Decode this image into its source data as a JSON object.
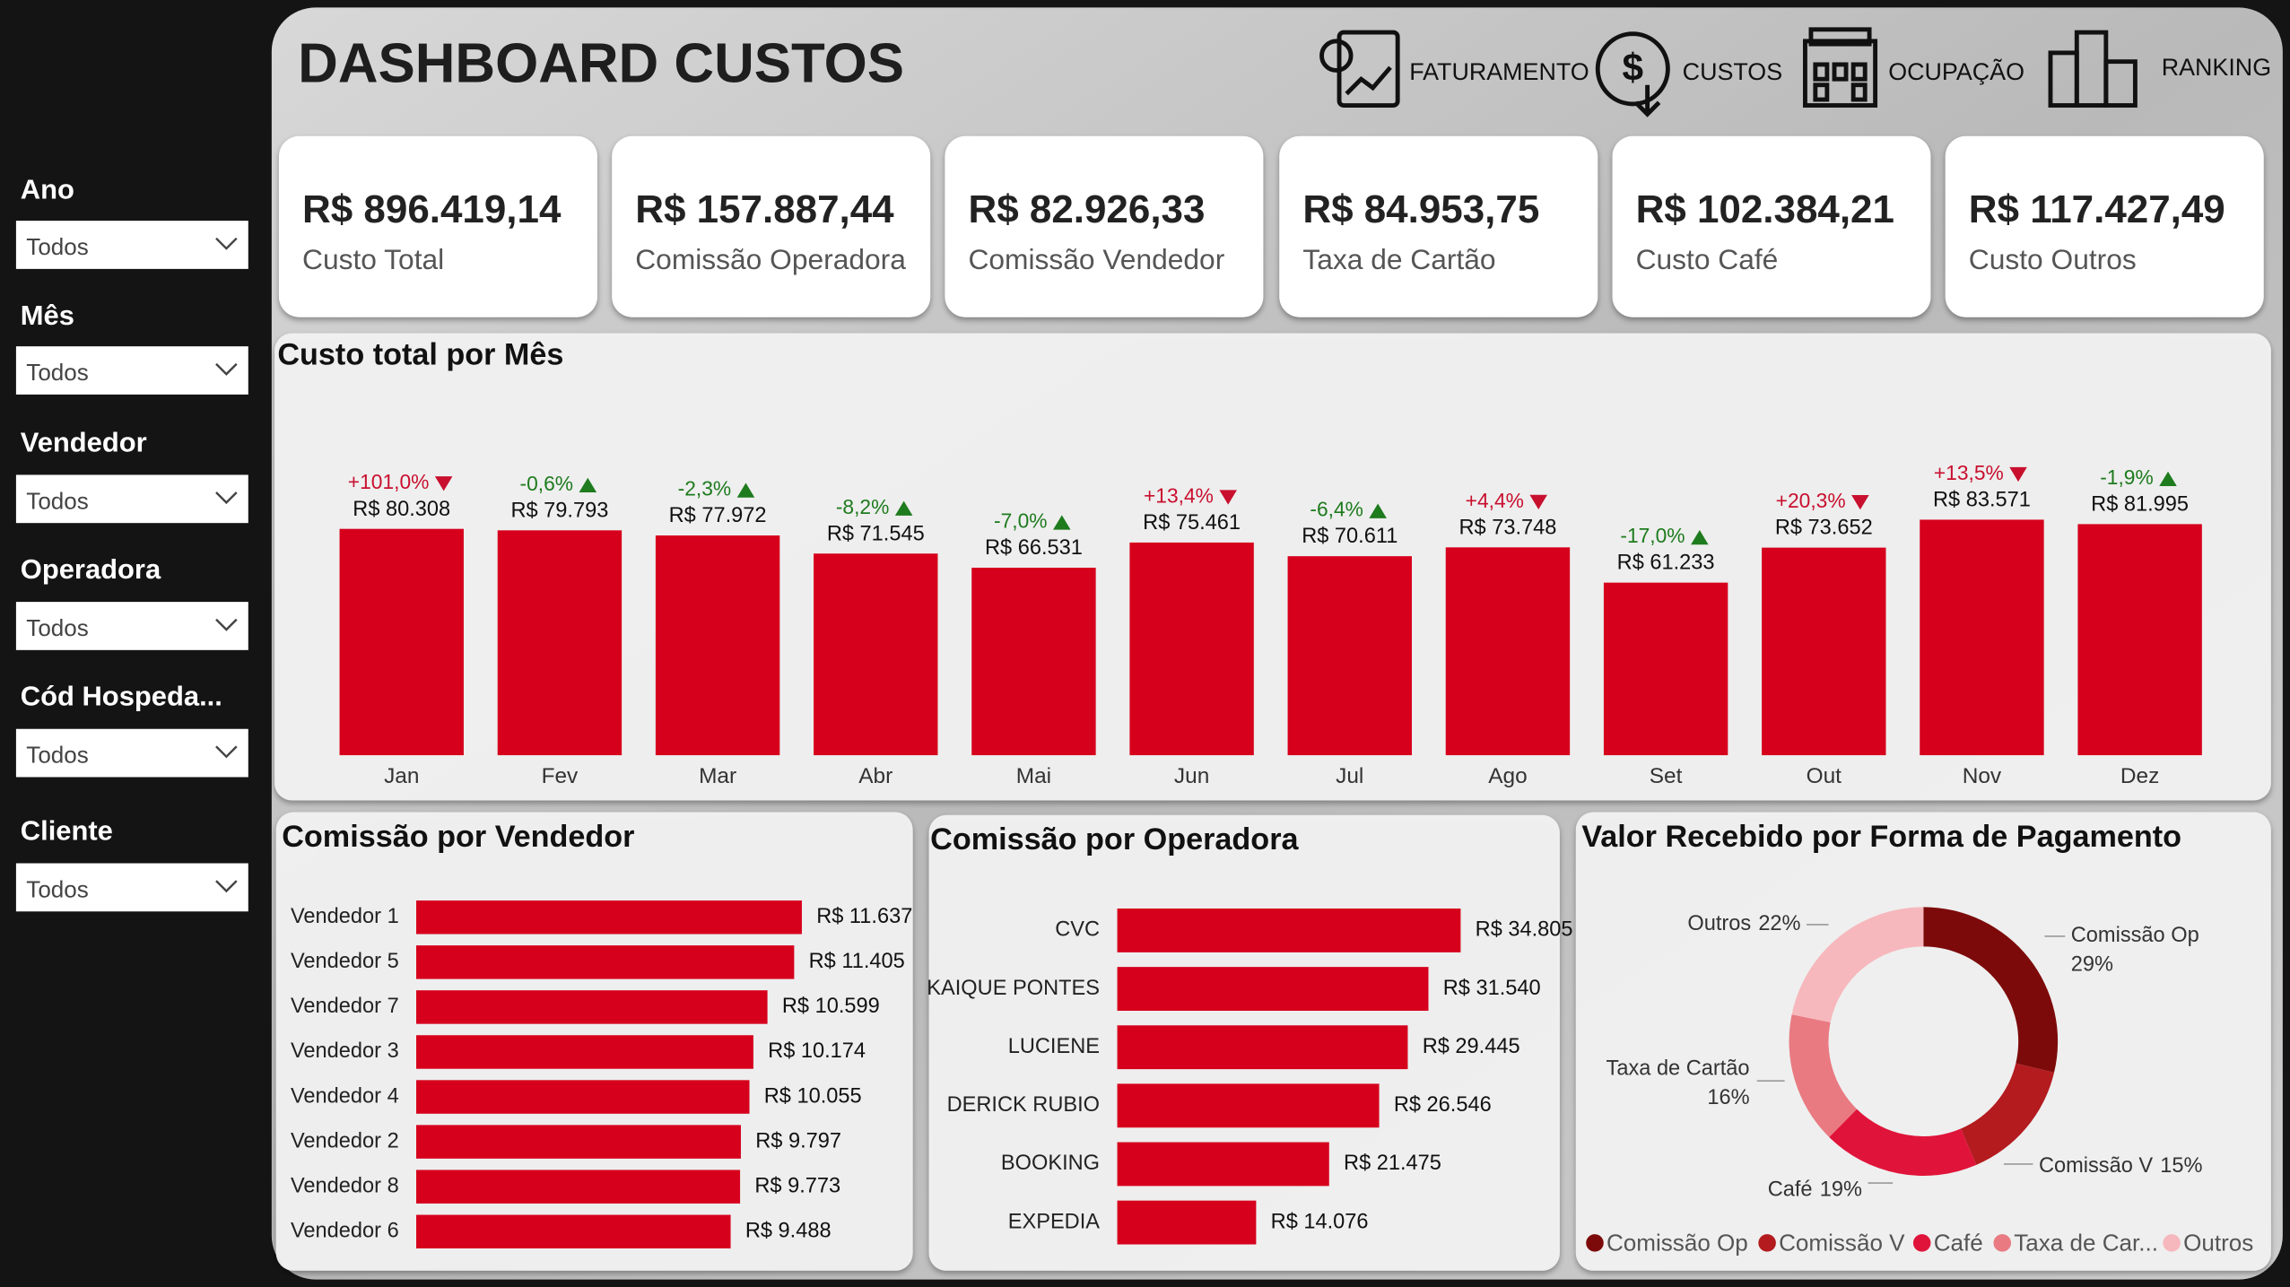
{
  "header": {
    "title": "DASHBOARD CUSTOS",
    "nav": [
      "FATURAMENTO",
      "CUSTOS",
      "OCUPAÇÃO",
      "RANKING"
    ]
  },
  "sidebar": {
    "filters": [
      {
        "label": "Ano",
        "value": "Todos"
      },
      {
        "label": "Mês",
        "value": "Todos"
      },
      {
        "label": "Vendedor",
        "value": "Todos"
      },
      {
        "label": "Operadora",
        "value": "Todos"
      },
      {
        "label": "Cód Hospeda...",
        "value": "Todos"
      },
      {
        "label": "Cliente",
        "value": "Todos"
      }
    ]
  },
  "kpis": [
    {
      "value": "R$ 896.419,14",
      "label": "Custo Total"
    },
    {
      "value": "R$ 157.887,44",
      "label": "Comissão Operadora"
    },
    {
      "value": "R$ 82.926,33",
      "label": "Comissão Vendedor"
    },
    {
      "value": "R$ 84.953,75",
      "label": "Taxa de Cartão"
    },
    {
      "value": "R$ 102.384,21",
      "label": "Custo Café"
    },
    {
      "value": "R$ 117.427,49",
      "label": "Custo Outros"
    }
  ],
  "chart_data": [
    {
      "type": "bar",
      "title": "Custo total por Mês",
      "categories": [
        "Jan",
        "Fev",
        "Mar",
        "Abr",
        "Mai",
        "Jun",
        "Jul",
        "Ago",
        "Set",
        "Out",
        "Nov",
        "Dez"
      ],
      "values": [
        80308,
        79793,
        77972,
        71545,
        66531,
        75461,
        70611,
        73748,
        61233,
        73652,
        83571,
        81995
      ],
      "value_labels": [
        "R$ 80.308",
        "R$ 79.793",
        "R$ 77.972",
        "R$ 71.545",
        "R$ 66.531",
        "R$ 75.461",
        "R$ 70.611",
        "R$ 73.748",
        "R$ 61.233",
        "R$ 73.652",
        "R$ 83.571",
        "R$ 81.995"
      ],
      "change_labels": [
        "+101,0%",
        "-0,6%",
        "-2,3%",
        "-8,2%",
        "-7,0%",
        "+13,4%",
        "-6,4%",
        "+4,4%",
        "-17,0%",
        "+20,3%",
        "+13,5%",
        "-1,9%"
      ],
      "change_colors": {
        "up": "#c8102e",
        "down": "#1e7b1e"
      },
      "color": "#d6001c",
      "ylim": [
        0,
        100000
      ]
    },
    {
      "type": "hbar",
      "title": "Comissão por Vendedor",
      "categories": [
        "Vendedor 1",
        "Vendedor 5",
        "Vendedor 7",
        "Vendedor 3",
        "Vendedor 4",
        "Vendedor 2",
        "Vendedor 8",
        "Vendedor 6"
      ],
      "values": [
        11637,
        11405,
        10599,
        10174,
        10055,
        9797,
        9773,
        9488
      ],
      "value_labels": [
        "R$ 11.637",
        "R$ 11.405",
        "R$ 10.599",
        "R$ 10.174",
        "R$ 10.055",
        "R$ 9.797",
        "R$ 9.773",
        "R$ 9.488"
      ],
      "color": "#d6001c",
      "xlim": [
        0,
        14500
      ]
    },
    {
      "type": "hbar",
      "title": "Comissão por Operadora",
      "categories": [
        "CVC",
        "KAIQUE PONTES",
        "LUCIENE",
        "DERICK RUBIO",
        "BOOKING",
        "EXPEDIA"
      ],
      "values": [
        34805,
        31540,
        29445,
        26546,
        21475,
        14076
      ],
      "value_labels": [
        "R$ 34.805",
        "R$ 31.540",
        "R$ 29.445",
        "R$ 26.546",
        "R$ 21.475",
        "R$ 14.076"
      ],
      "color": "#d6001c",
      "xlim": [
        0,
        45000
      ]
    },
    {
      "type": "donut",
      "title": "Valor Recebido por Forma de Pagamento",
      "categories": [
        "Comissão Op",
        "Comissão V",
        "Café",
        "Taxa de Cartão",
        "Outros"
      ],
      "legend_labels": [
        "Comissão Op",
        "Comissão V",
        "Café",
        "Taxa de Car...",
        "Outros"
      ],
      "values": [
        29,
        15,
        19,
        16,
        22
      ],
      "value_labels": [
        "29%",
        "15%",
        "19%",
        "16%",
        "22%"
      ],
      "colors": [
        "#7d0a0a",
        "#b31b1f",
        "#e0143a",
        "#e97a82",
        "#f6b8bd"
      ]
    }
  ]
}
